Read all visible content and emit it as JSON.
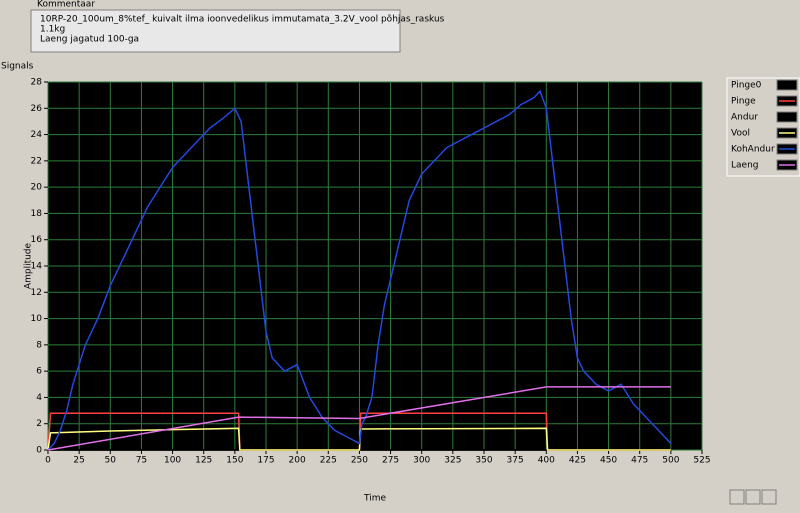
{
  "comment": {
    "label": "Kommentaar",
    "lines": [
      "10RP-20_100um_8%tef_ kuivalt ilma ioonvedelikus immutamata_3.2V_vool põhjas_raskus",
      "1.1kg",
      "Laeng jagatud 100-ga"
    ]
  },
  "graph_label": "Signals",
  "chart_data": {
    "type": "line",
    "x_label": "Time",
    "y_label": "Amplitude",
    "xlim": [
      0,
      525
    ],
    "xticks": [
      0,
      25,
      50,
      75,
      100,
      125,
      150,
      175,
      200,
      225,
      250,
      275,
      300,
      325,
      350,
      375,
      400,
      425,
      450,
      475,
      500,
      525
    ],
    "ylim": [
      0,
      28
    ],
    "yticks": [
      0,
      2,
      4,
      6,
      8,
      10,
      12,
      14,
      16,
      18,
      20,
      22,
      24,
      26,
      28
    ],
    "grid": true,
    "legend": "right",
    "series": [
      {
        "name": "Pinge0",
        "color": "#000000",
        "x": [
          0,
          500
        ],
        "values": [
          0,
          0
        ]
      },
      {
        "name": "Pinge",
        "color": "#ff4040",
        "x": [
          0,
          2,
          153,
          154,
          250,
          251,
          400,
          401,
          500
        ],
        "values": [
          0,
          2.8,
          2.8,
          0,
          0,
          2.8,
          2.8,
          0,
          0
        ]
      },
      {
        "name": "Andur",
        "color": "#000000",
        "x": [
          0,
          500
        ],
        "values": [
          0,
          0
        ]
      },
      {
        "name": "Vool",
        "color": "#ffff80",
        "x": [
          0,
          2,
          50,
          100,
          153,
          154,
          250,
          251,
          400,
          401,
          500
        ],
        "values": [
          0,
          1.3,
          1.45,
          1.55,
          1.65,
          0,
          0,
          1.6,
          1.65,
          0,
          0
        ]
      },
      {
        "name": "KohAndur",
        "color": "#2448e0",
        "x": [
          0,
          5,
          10,
          15,
          20,
          25,
          30,
          40,
          50,
          60,
          70,
          80,
          90,
          100,
          110,
          120,
          130,
          140,
          150,
          155,
          160,
          165,
          170,
          175,
          180,
          190,
          200,
          210,
          220,
          230,
          240,
          250,
          252,
          255,
          260,
          265,
          270,
          280,
          290,
          300,
          310,
          320,
          330,
          340,
          350,
          360,
          370,
          380,
          390,
          395,
          400,
          405,
          410,
          415,
          420,
          425,
          430,
          440,
          450,
          460,
          470,
          480,
          490,
          500
        ],
        "values": [
          0,
          0.5,
          1.5,
          3,
          5,
          6.5,
          8,
          10,
          12.5,
          14.5,
          16.5,
          18.5,
          20,
          21.5,
          22.5,
          23.5,
          24.5,
          25.2,
          26,
          25,
          21,
          17,
          13,
          9,
          7,
          6,
          6.5,
          4,
          2.5,
          1.5,
          1,
          0.5,
          2,
          2.5,
          4,
          8,
          11,
          15,
          19,
          21,
          22,
          23,
          23.5,
          24,
          24.5,
          25,
          25.5,
          26.3,
          26.8,
          27.3,
          26,
          22,
          18,
          14,
          10,
          7,
          6,
          5,
          4.5,
          5,
          3.5,
          2.5,
          1.5,
          0.5
        ]
      },
      {
        "name": "Laeng",
        "color": "#e070e8",
        "x": [
          0,
          153,
          250,
          400,
          500
        ],
        "values": [
          0,
          2.5,
          2.4,
          4.8,
          4.8
        ]
      }
    ]
  }
}
